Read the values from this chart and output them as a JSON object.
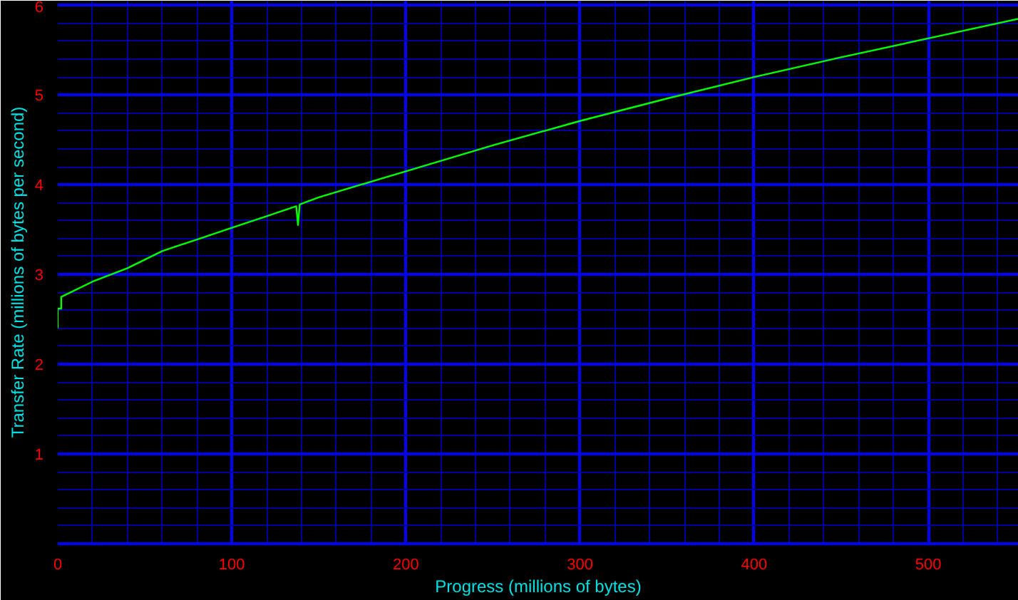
{
  "chart_data": {
    "type": "line",
    "xlabel": "Progress (millions of bytes)",
    "ylabel": "Transfer Rate (millions of bytes per second)",
    "x": [
      0,
      0,
      2,
      2,
      20,
      40,
      60,
      80,
      100,
      120,
      137,
      138,
      139,
      150,
      200,
      250,
      300,
      350,
      400,
      450,
      500,
      552
    ],
    "series": [
      {
        "color": "#00ff00",
        "values": [
          2.4,
          2.62,
          2.62,
          2.75,
          2.92,
          3.07,
          3.26,
          3.39,
          3.52,
          3.65,
          3.76,
          3.55,
          3.78,
          3.86,
          4.15,
          4.44,
          4.71,
          4.96,
          5.2,
          5.42,
          5.63,
          5.85
        ]
      }
    ],
    "xlim": [
      0,
      552
    ],
    "ylim": [
      0,
      6.05
    ],
    "xticks": [
      0,
      {
        "value": 20,
        "label": null
      },
      {
        "value": 40,
        "label": null
      },
      {
        "value": 60,
        "label": null
      },
      {
        "value": 80,
        "label": null
      },
      100,
      {
        "value": 120,
        "label": null
      },
      {
        "value": 140,
        "label": null
      },
      {
        "value": 160,
        "label": null
      },
      {
        "value": 180,
        "label": null
      },
      200,
      {
        "value": 220,
        "label": null
      },
      {
        "value": 240,
        "label": null
      },
      {
        "value": 260,
        "label": null
      },
      {
        "value": 280,
        "label": null
      },
      300,
      {
        "value": 320,
        "label": null
      },
      {
        "value": 340,
        "label": null
      },
      {
        "value": 360,
        "label": null
      },
      {
        "value": 380,
        "label": null
      },
      400,
      {
        "value": 420,
        "label": null
      },
      {
        "value": 440,
        "label": null
      },
      {
        "value": 460,
        "label": null
      },
      {
        "value": 480,
        "label": null
      },
      500,
      {
        "value": 520,
        "label": null
      },
      {
        "value": 540,
        "label": null
      }
    ],
    "yticks": [
      {
        "value": 0.2,
        "label": null
      },
      {
        "value": 0.4,
        "label": null
      },
      {
        "value": 0.6,
        "label": null
      },
      {
        "value": 0.8,
        "label": null
      },
      1,
      {
        "value": 1.2,
        "label": null
      },
      {
        "value": 1.4,
        "label": null
      },
      {
        "value": 1.6,
        "label": null
      },
      {
        "value": 1.8,
        "label": null
      },
      2,
      {
        "value": 2.2,
        "label": null
      },
      {
        "value": 2.4,
        "label": null
      },
      {
        "value": 2.6,
        "label": null
      },
      {
        "value": 2.8,
        "label": null
      },
      3,
      {
        "value": 3.2,
        "label": null
      },
      {
        "value": 3.4,
        "label": null
      },
      {
        "value": 3.6,
        "label": null
      },
      {
        "value": 3.8,
        "label": null
      },
      4,
      {
        "value": 4.2,
        "label": null
      },
      {
        "value": 4.4,
        "label": null
      },
      {
        "value": 4.6,
        "label": null
      },
      {
        "value": 4.8,
        "label": null
      },
      5,
      {
        "value": 5.2,
        "label": null
      },
      {
        "value": 5.4,
        "label": null
      },
      {
        "value": 5.6,
        "label": null
      },
      {
        "value": 5.8,
        "label": null
      },
      6
    ],
    "grid": true
  }
}
